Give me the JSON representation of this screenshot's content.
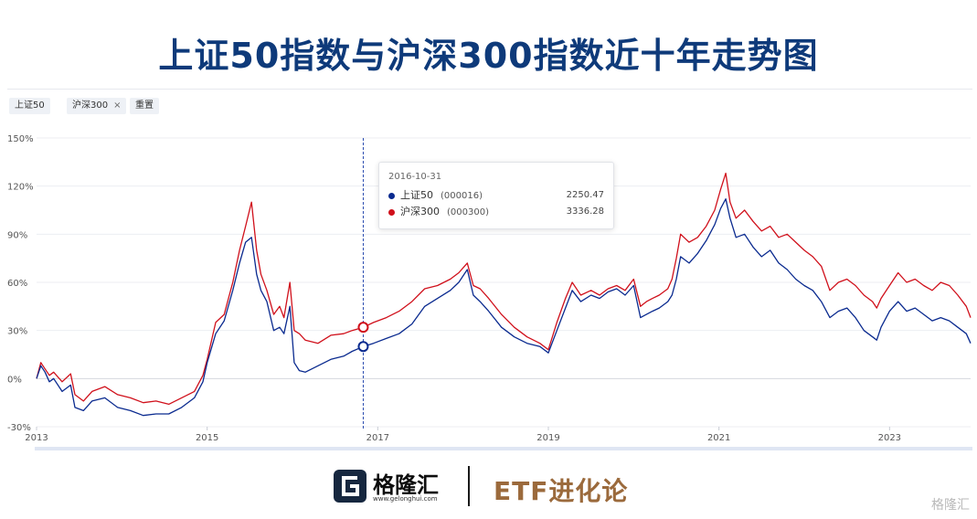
{
  "page": {
    "title": "上证50指数与沪深300指数近十年走势图"
  },
  "controls": {
    "chip1": "上证50",
    "chip2": "沪深300",
    "chip2_close": "×",
    "reset": "重置"
  },
  "tooltip": {
    "date": "2016-10-31",
    "rows": [
      {
        "name": "上证50",
        "code": "(000016)",
        "value": "2250.47",
        "color": "#0a2a8f"
      },
      {
        "name": "沪深300",
        "code": "(000300)",
        "value": "3336.28",
        "color": "#d0101b"
      }
    ]
  },
  "footer": {
    "brand": "格隆汇",
    "brand_url": "www.gelonghui.com",
    "etf": "ETF进化论",
    "watermark": "格隆汇"
  },
  "chart_data": {
    "type": "line",
    "title": "",
    "xlabel": "",
    "ylabel": "",
    "xlim": [
      2013.0,
      2023.95
    ],
    "ylim": [
      -30,
      150
    ],
    "yticks": [
      -30,
      0,
      30,
      60,
      90,
      120,
      150
    ],
    "ytick_labels": [
      "-30%",
      "0%",
      "30%",
      "60%",
      "90%",
      "120%",
      "150%"
    ],
    "xticks": [
      2013,
      2015,
      2017,
      2019,
      2021,
      2023
    ],
    "xtick_labels": [
      "2013",
      "2015",
      "2017",
      "2019",
      "2021",
      "2023"
    ],
    "grid": true,
    "crosshair_x": 2016.83,
    "highlight_points": [
      {
        "series": "沪深300",
        "x": 2016.83,
        "y": 32,
        "color": "#d0101b"
      },
      {
        "series": "上证50",
        "x": 2016.83,
        "y": 20,
        "color": "#0a2a8f"
      }
    ],
    "series": [
      {
        "name": "沪深300",
        "color": "#d0101b",
        "x": [
          2013.0,
          2013.05,
          2013.1,
          2013.15,
          2013.2,
          2013.3,
          2013.4,
          2013.45,
          2013.55,
          2013.65,
          2013.8,
          2013.95,
          2014.1,
          2014.25,
          2014.4,
          2014.55,
          2014.7,
          2014.85,
          2014.95,
          2015.0,
          2015.1,
          2015.2,
          2015.3,
          2015.38,
          2015.45,
          2015.52,
          2015.58,
          2015.63,
          2015.7,
          2015.78,
          2015.85,
          2015.9,
          2015.97,
          2016.02,
          2016.08,
          2016.15,
          2016.3,
          2016.45,
          2016.6,
          2016.7,
          2016.83,
          2016.95,
          2017.1,
          2017.25,
          2017.4,
          2017.55,
          2017.7,
          2017.85,
          2017.95,
          2018.05,
          2018.12,
          2018.2,
          2018.3,
          2018.45,
          2018.6,
          2018.75,
          2018.9,
          2019.0,
          2019.1,
          2019.2,
          2019.28,
          2019.38,
          2019.5,
          2019.6,
          2019.7,
          2019.8,
          2019.9,
          2020.0,
          2020.08,
          2020.15,
          2020.22,
          2020.3,
          2020.4,
          2020.45,
          2020.5,
          2020.55,
          2020.65,
          2020.75,
          2020.85,
          2020.95,
          2021.02,
          2021.08,
          2021.13,
          2021.2,
          2021.3,
          2021.4,
          2021.5,
          2021.6,
          2021.7,
          2021.8,
          2021.9,
          2022.0,
          2022.1,
          2022.2,
          2022.3,
          2022.4,
          2022.5,
          2022.6,
          2022.7,
          2022.8,
          2022.85,
          2022.9,
          2023.0,
          2023.1,
          2023.2,
          2023.3,
          2023.4,
          2023.5,
          2023.6,
          2023.7,
          2023.8,
          2023.9,
          2023.95
        ],
        "y": [
          0,
          10,
          6,
          2,
          4,
          -2,
          3,
          -10,
          -14,
          -8,
          -5,
          -10,
          -12,
          -15,
          -14,
          -16,
          -12,
          -8,
          2,
          12,
          35,
          40,
          60,
          80,
          95,
          110,
          80,
          65,
          55,
          40,
          45,
          38,
          60,
          30,
          28,
          24,
          22,
          27,
          28,
          30,
          32,
          35,
          38,
          42,
          48,
          56,
          58,
          62,
          66,
          72,
          58,
          56,
          50,
          40,
          32,
          26,
          22,
          18,
          35,
          50,
          60,
          52,
          55,
          52,
          56,
          58,
          55,
          62,
          45,
          48,
          50,
          52,
          56,
          62,
          75,
          90,
          85,
          88,
          95,
          105,
          118,
          128,
          110,
          100,
          105,
          98,
          92,
          95,
          88,
          90,
          85,
          80,
          76,
          70,
          55,
          60,
          62,
          58,
          52,
          48,
          44,
          50,
          58,
          66,
          60,
          62,
          58,
          55,
          60,
          58,
          52,
          45,
          38
        ]
      },
      {
        "name": "上证50",
        "color": "#0a2a8f",
        "x": [
          2013.0,
          2013.05,
          2013.1,
          2013.15,
          2013.2,
          2013.3,
          2013.4,
          2013.45,
          2013.55,
          2013.65,
          2013.8,
          2013.95,
          2014.1,
          2014.25,
          2014.4,
          2014.55,
          2014.7,
          2014.85,
          2014.95,
          2015.0,
          2015.1,
          2015.2,
          2015.3,
          2015.38,
          2015.45,
          2015.52,
          2015.58,
          2015.63,
          2015.7,
          2015.78,
          2015.85,
          2015.9,
          2015.97,
          2016.02,
          2016.08,
          2016.15,
          2016.3,
          2016.45,
          2016.6,
          2016.7,
          2016.83,
          2016.95,
          2017.1,
          2017.25,
          2017.4,
          2017.55,
          2017.7,
          2017.85,
          2017.95,
          2018.05,
          2018.12,
          2018.2,
          2018.3,
          2018.45,
          2018.6,
          2018.75,
          2018.9,
          2019.0,
          2019.1,
          2019.2,
          2019.28,
          2019.38,
          2019.5,
          2019.6,
          2019.7,
          2019.8,
          2019.9,
          2020.0,
          2020.08,
          2020.15,
          2020.22,
          2020.3,
          2020.4,
          2020.45,
          2020.5,
          2020.55,
          2020.65,
          2020.75,
          2020.85,
          2020.95,
          2021.02,
          2021.08,
          2021.13,
          2021.2,
          2021.3,
          2021.4,
          2021.5,
          2021.6,
          2021.7,
          2021.8,
          2021.9,
          2022.0,
          2022.1,
          2022.2,
          2022.3,
          2022.4,
          2022.5,
          2022.6,
          2022.7,
          2022.8,
          2022.85,
          2022.9,
          2023.0,
          2023.1,
          2023.2,
          2023.3,
          2023.4,
          2023.5,
          2023.6,
          2023.7,
          2023.8,
          2023.9,
          2023.95
        ],
        "y": [
          0,
          8,
          4,
          -2,
          0,
          -8,
          -4,
          -18,
          -20,
          -14,
          -12,
          -18,
          -20,
          -23,
          -22,
          -22,
          -18,
          -12,
          -2,
          10,
          28,
          36,
          55,
          72,
          85,
          88,
          65,
          55,
          48,
          30,
          32,
          28,
          45,
          10,
          5,
          4,
          8,
          12,
          14,
          17,
          20,
          22,
          25,
          28,
          34,
          45,
          50,
          55,
          60,
          68,
          52,
          48,
          42,
          32,
          26,
          22,
          20,
          16,
          30,
          44,
          55,
          48,
          52,
          50,
          54,
          56,
          52,
          58,
          38,
          40,
          42,
          44,
          48,
          52,
          62,
          76,
          72,
          78,
          86,
          96,
          106,
          112,
          100,
          88,
          90,
          82,
          76,
          80,
          72,
          68,
          62,
          58,
          55,
          48,
          38,
          42,
          44,
          38,
          30,
          26,
          24,
          32,
          42,
          48,
          42,
          44,
          40,
          36,
          38,
          36,
          32,
          28,
          22
        ]
      }
    ]
  }
}
